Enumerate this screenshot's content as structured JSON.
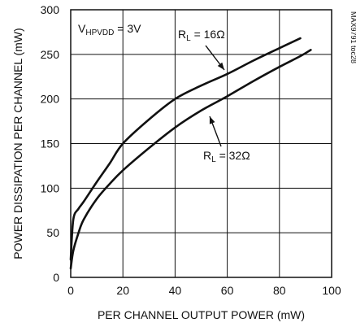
{
  "chart_data": {
    "type": "line",
    "title": "",
    "xlabel": "PER CHANNEL OUTPUT POWER (mW)",
    "ylabel": "POWER DISSIPATION PER CHANNEL (mW)",
    "xlim": [
      0,
      100
    ],
    "ylim": [
      0,
      300
    ],
    "x_ticks": [
      0,
      20,
      40,
      60,
      80,
      100
    ],
    "y_ticks": [
      0,
      50,
      100,
      150,
      200,
      250,
      300
    ],
    "grid": true,
    "series": [
      {
        "name": "R_L = 16Ω",
        "x": [
          0,
          1,
          3,
          5,
          10,
          15,
          20,
          30,
          40,
          50,
          60,
          70,
          80,
          88
        ],
        "y": [
          20,
          65,
          77,
          85,
          107,
          128,
          150,
          177,
          200,
          215,
          228,
          243,
          257,
          268
        ]
      },
      {
        "name": "R_L = 32Ω",
        "x": [
          0,
          1,
          3,
          5,
          10,
          15,
          20,
          30,
          40,
          50,
          60,
          70,
          80,
          88,
          92
        ],
        "y": [
          10,
          30,
          50,
          65,
          88,
          105,
          120,
          145,
          168,
          187,
          203,
          220,
          236,
          248,
          255
        ]
      }
    ],
    "annotations": {
      "condition_main": "V",
      "condition_sub": "HPVDD",
      "condition_tail": " = 3V",
      "label_16_main": "R",
      "label_16_sub": "L",
      "label_16_tail": " = 16Ω",
      "label_32_main": "R",
      "label_32_sub": "L",
      "label_32_tail": " = 32Ω",
      "figure_code": "MAX9791 toc28"
    }
  }
}
